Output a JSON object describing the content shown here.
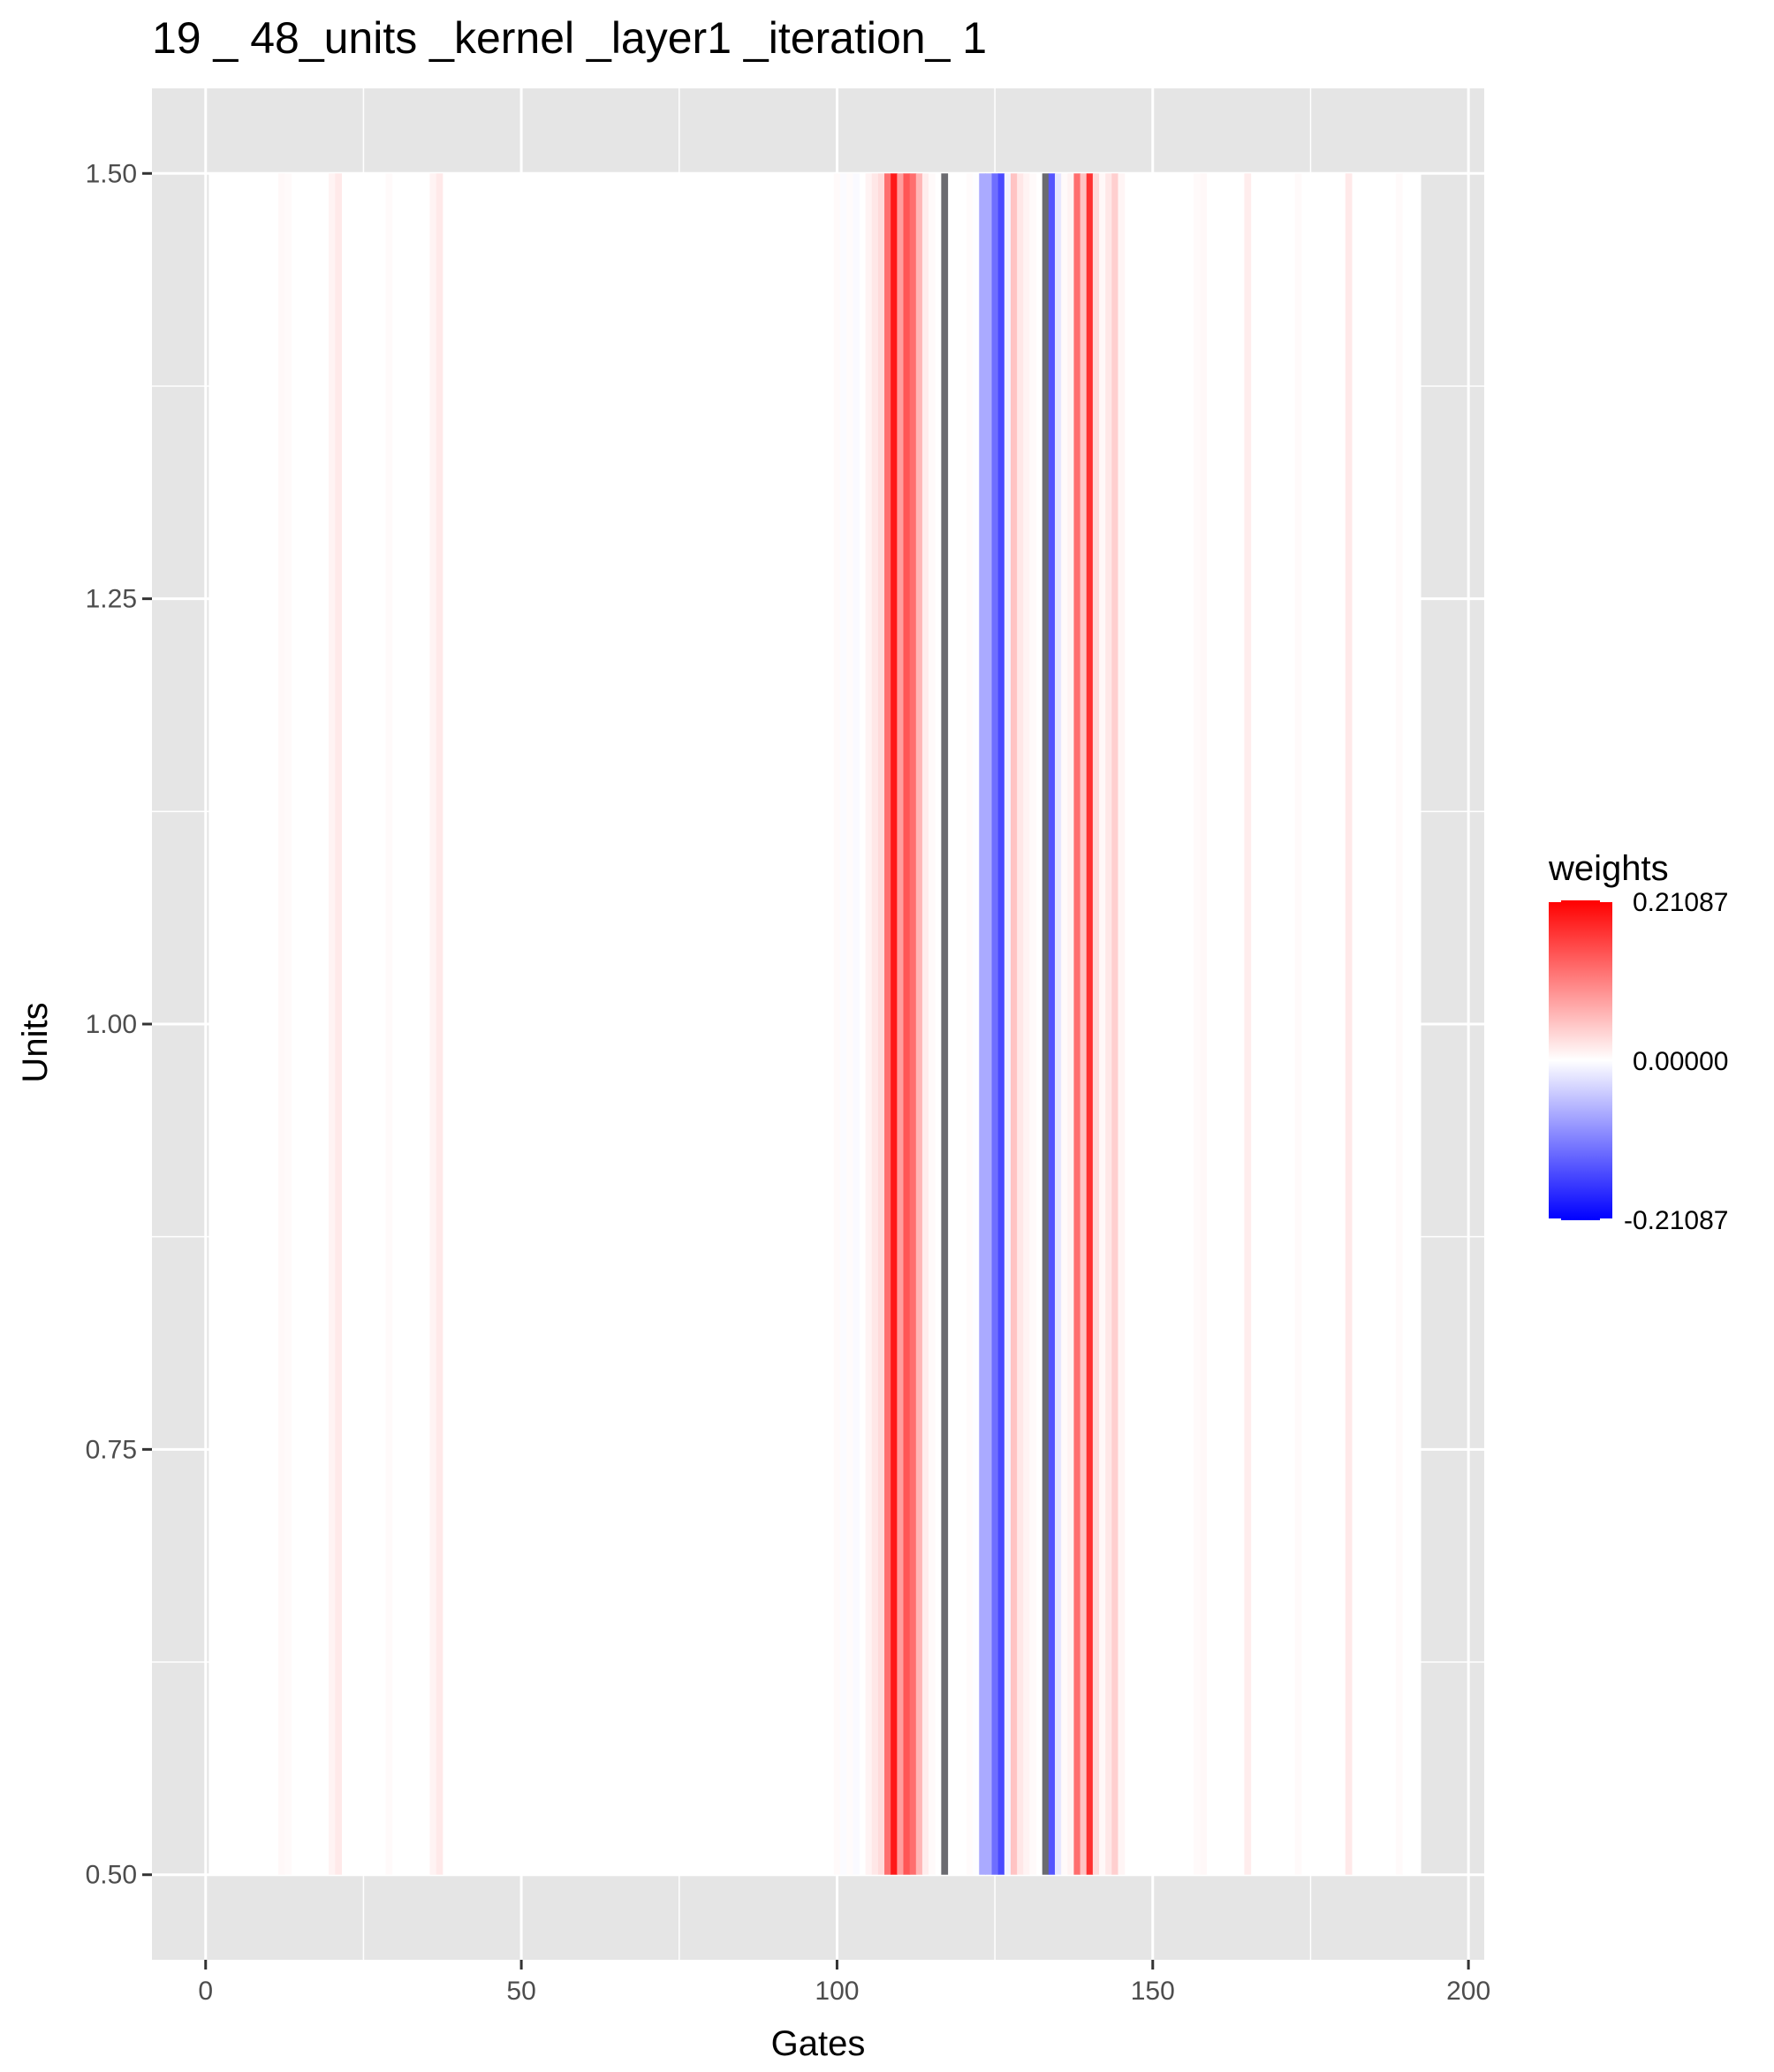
{
  "chart_data": {
    "type": "heatmap",
    "title": "19 _ 48_units _kernel _layer1 _iteration_ 1",
    "xlabel": "Gates",
    "ylabel": "Units",
    "xlim": [
      -8.5,
      202.5
    ],
    "ylim": [
      0.45,
      1.55
    ],
    "x_ticks": [
      0,
      50,
      100,
      150,
      200
    ],
    "x_tick_labels": [
      "0",
      "50",
      "100",
      "150",
      "200"
    ],
    "y_ticks": [
      0.5,
      0.75,
      1.0,
      1.25,
      1.5
    ],
    "y_tick_labels": [
      "0.50",
      "0.75",
      "1.00",
      "1.25",
      "1.50"
    ],
    "tile_y_range": [
      0.5,
      1.5
    ],
    "gates": 192,
    "grid": true,
    "legend": {
      "title": "weights",
      "position": "right",
      "max_label": "0.21087",
      "mid_label": "0.00000",
      "min_label": "-0.21087",
      "max": 0.21087,
      "min": -0.21087
    },
    "colors": {
      "low": "#0000ff",
      "mid": "#ffffff",
      "high": "#ff0000",
      "na": "#6b6b70",
      "panel": "#e5e5e5",
      "grid": "#ffffff"
    },
    "weights": [
      {
        "x": 12,
        "v": 0.006
      },
      {
        "x": 13,
        "v": 0.004
      },
      {
        "x": 20,
        "v": 0.01
      },
      {
        "x": 21,
        "v": 0.018
      },
      {
        "x": 29,
        "v": 0.004
      },
      {
        "x": 36,
        "v": 0.01
      },
      {
        "x": 37,
        "v": 0.018
      },
      {
        "x": 100,
        "v": 0.004
      },
      {
        "x": 101,
        "v": -0.003
      },
      {
        "x": 102,
        "v": 0.003
      },
      {
        "x": 103,
        "v": -0.004
      },
      {
        "x": 105,
        "v": 0.01
      },
      {
        "x": 106,
        "v": 0.02
      },
      {
        "x": 107,
        "v": 0.03
      },
      {
        "x": 108,
        "v": 0.12
      },
      {
        "x": 109,
        "v": 0.19
      },
      {
        "x": 110,
        "v": 0.08
      },
      {
        "x": 111,
        "v": 0.14
      },
      {
        "x": 112,
        "v": 0.12
      },
      {
        "x": 113,
        "v": 0.06
      },
      {
        "x": 114,
        "v": 0.015
      },
      {
        "x": 115,
        "v": 0.004
      },
      {
        "x": 117,
        "v": null
      },
      {
        "x": 121,
        "v": 0.003
      },
      {
        "x": 122,
        "v": -0.002
      },
      {
        "x": 123,
        "v": -0.07
      },
      {
        "x": 124,
        "v": -0.07
      },
      {
        "x": 125,
        "v": -0.12
      },
      {
        "x": 126,
        "v": -0.15
      },
      {
        "x": 127,
        "v": -0.01
      },
      {
        "x": 128,
        "v": 0.05
      },
      {
        "x": 129,
        "v": 0.02
      },
      {
        "x": 130,
        "v": 0.01
      },
      {
        "x": 131,
        "v": 0.004
      },
      {
        "x": 133,
        "v": null
      },
      {
        "x": 134,
        "v": -0.14
      },
      {
        "x": 135,
        "v": -0.02
      },
      {
        "x": 136,
        "v": 0.004
      },
      {
        "x": 137,
        "v": 0.01
      },
      {
        "x": 138,
        "v": 0.12
      },
      {
        "x": 139,
        "v": 0.05
      },
      {
        "x": 140,
        "v": 0.17
      },
      {
        "x": 141,
        "v": 0.03
      },
      {
        "x": 142,
        "v": 0.006
      },
      {
        "x": 143,
        "v": 0.02
      },
      {
        "x": 144,
        "v": 0.04
      },
      {
        "x": 145,
        "v": 0.008
      },
      {
        "x": 157,
        "v": 0.004
      },
      {
        "x": 158,
        "v": 0.006
      },
      {
        "x": 165,
        "v": 0.015
      },
      {
        "x": 173,
        "v": 0.004
      },
      {
        "x": 181,
        "v": 0.018
      },
      {
        "x": 189,
        "v": 0.004
      }
    ]
  }
}
